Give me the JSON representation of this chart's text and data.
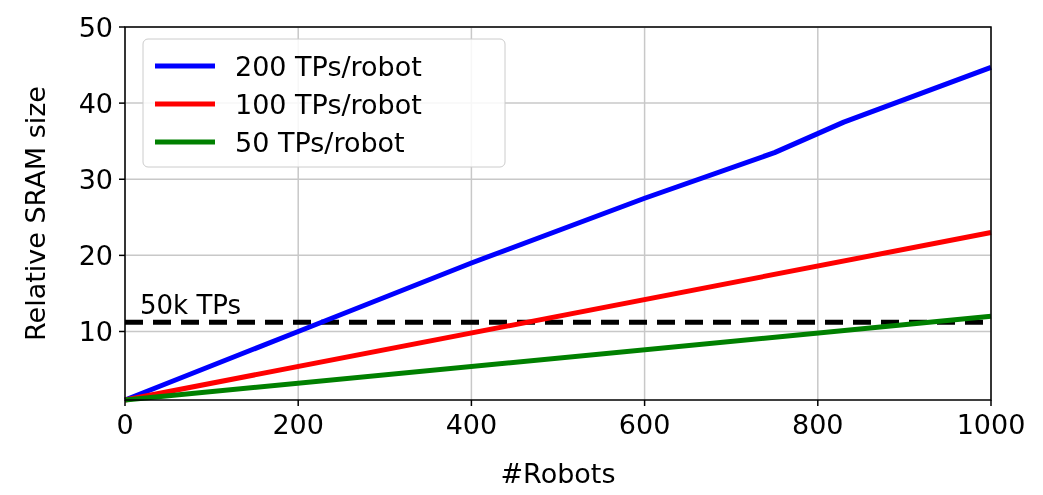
{
  "chart_data": {
    "type": "line",
    "xlabel": "#Robots",
    "ylabel": "Relative SRAM size",
    "xlim": [
      0,
      1000
    ],
    "xticks": [
      0,
      200,
      400,
      600,
      800,
      1000
    ],
    "ylim": [
      1,
      50
    ],
    "yticks": [
      10,
      20,
      30,
      40,
      50
    ],
    "grid": true,
    "legend": "top left",
    "line_style": "solid",
    "marker": "none",
    "series": [
      {
        "name": "200 TPs/robot",
        "color": "#0000ff",
        "x": [
          0,
          200,
          400,
          600,
          750,
          830,
          1000
        ],
        "values": [
          1,
          10,
          19,
          27.5,
          33.5,
          37.5,
          44.7
        ]
      },
      {
        "name": "100 TPs/robot",
        "color": "#ff0000",
        "x": [
          0,
          1000
        ],
        "values": [
          1,
          23
        ]
      },
      {
        "name": "50 TPs/robot",
        "color": "#008000",
        "x": [
          0,
          1000
        ],
        "values": [
          1,
          12
        ]
      }
    ],
    "ref_lines": [
      {
        "axis": "y",
        "value": 11.2,
        "label": "50k TPs",
        "color": "#000000",
        "line_style": "dashed"
      }
    ]
  }
}
